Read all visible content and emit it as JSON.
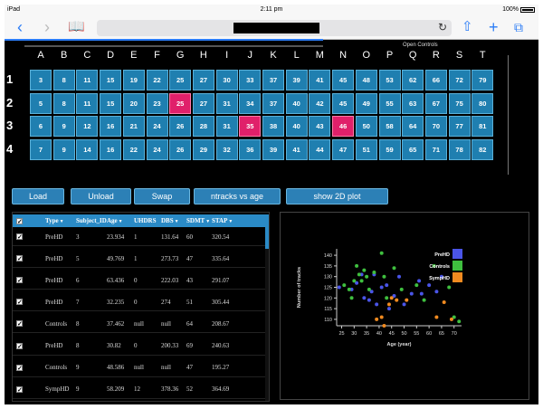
{
  "status": {
    "carrier": "iPad",
    "time": "2:11 pm",
    "battery": "100%"
  },
  "app": {
    "open_controls_label": "Open Controls",
    "columns": [
      "A",
      "B",
      "C",
      "D",
      "E",
      "F",
      "G",
      "H",
      "I",
      "J",
      "K",
      "L",
      "M",
      "N",
      "O",
      "P",
      "Q",
      "R",
      "S",
      "T"
    ],
    "rows": [
      {
        "label": "1",
        "cells": [
          "3",
          "8",
          "11",
          "15",
          "19",
          "22",
          "25",
          "27",
          "30",
          "33",
          "37",
          "39",
          "41",
          "45",
          "48",
          "53",
          "62",
          "66",
          "72",
          "79"
        ]
      },
      {
        "label": "2",
        "cells": [
          "5",
          "8",
          "11",
          "15",
          "20",
          "23",
          "25",
          "27",
          "31",
          "34",
          "37",
          "40",
          "42",
          "45",
          "49",
          "55",
          "63",
          "67",
          "75",
          "80"
        ]
      },
      {
        "label": "3",
        "cells": [
          "6",
          "9",
          "12",
          "16",
          "21",
          "24",
          "26",
          "28",
          "31",
          "35",
          "38",
          "40",
          "43",
          "46",
          "50",
          "58",
          "64",
          "70",
          "77",
          "81"
        ]
      },
      {
        "label": "4",
        "cells": [
          "7",
          "9",
          "14",
          "16",
          "22",
          "24",
          "26",
          "29",
          "32",
          "36",
          "39",
          "41",
          "44",
          "47",
          "51",
          "59",
          "65",
          "71",
          "78",
          "82"
        ]
      }
    ],
    "highlighted": [
      [
        1,
        6
      ],
      [
        2,
        9
      ],
      [
        2,
        13
      ]
    ],
    "buttons": {
      "load": "Load",
      "unload": "Unload",
      "swap": "Swap",
      "ntracks": "ntracks vs age",
      "show2d": "show 2D plot"
    },
    "table": {
      "headers": [
        "Type",
        "Subject_ID",
        "Age",
        "UHDRS",
        "DBS",
        "SDMT",
        "STAP"
      ],
      "rows": [
        [
          "PreHD",
          "3",
          "23.934",
          "1",
          "131.64",
          "60",
          "320.54"
        ],
        [
          "PreHD",
          "5",
          "49.769",
          "1",
          "273.73",
          "47",
          "335.64"
        ],
        [
          "PreHD",
          "6",
          "63.436",
          "0",
          "222.03",
          "43",
          "291.07"
        ],
        [
          "PreHD",
          "7",
          "32.235",
          "0",
          "274",
          "51",
          "305.44"
        ],
        [
          "Controls",
          "8",
          "37.462",
          "null",
          "null",
          "64",
          "208.67"
        ],
        [
          "PreHD",
          "8",
          "30.82",
          "0",
          "200.33",
          "69",
          "240.63"
        ],
        [
          "Controls",
          "9",
          "48.586",
          "null",
          "null",
          "47",
          "195.27"
        ],
        [
          "SympHD",
          "9",
          "58.209",
          "12",
          "378.36",
          "52",
          "364.69"
        ]
      ]
    }
  },
  "chart_data": {
    "type": "scatter",
    "xlabel": "Age (year)",
    "ylabel": "Number of tracks",
    "xlim": [
      23,
      73
    ],
    "ylim": [
      107,
      143
    ],
    "xticks": [
      25,
      30,
      35,
      40,
      45,
      50,
      55,
      60,
      65,
      70
    ],
    "yticks": [
      110,
      115,
      120,
      125,
      130,
      135,
      140
    ],
    "legend_position": "top-right",
    "series": [
      {
        "name": "PreHD",
        "color": "#4a55e8",
        "points": [
          [
            24,
            125
          ],
          [
            29,
            124
          ],
          [
            31,
            127
          ],
          [
            33,
            131
          ],
          [
            34,
            120
          ],
          [
            36,
            119
          ],
          [
            37,
            123
          ],
          [
            38,
            131
          ],
          [
            39,
            117
          ],
          [
            41,
            125
          ],
          [
            43,
            126
          ],
          [
            44,
            115
          ],
          [
            46,
            121
          ],
          [
            48,
            130
          ],
          [
            50,
            117
          ],
          [
            53,
            122
          ],
          [
            56,
            128
          ],
          [
            57,
            122
          ],
          [
            60,
            126
          ],
          [
            63,
            123
          ],
          [
            65,
            130
          ]
        ]
      },
      {
        "name": "Controls",
        "color": "#3fbf3f",
        "points": [
          [
            26,
            126
          ],
          [
            28,
            124
          ],
          [
            29,
            120
          ],
          [
            30,
            128
          ],
          [
            31,
            135
          ],
          [
            32,
            131
          ],
          [
            33,
            128
          ],
          [
            34,
            133
          ],
          [
            35,
            130
          ],
          [
            36,
            124
          ],
          [
            38,
            132
          ],
          [
            41,
            141
          ],
          [
            42,
            130
          ],
          [
            43,
            120
          ],
          [
            46,
            134
          ],
          [
            49,
            124
          ],
          [
            55,
            126
          ],
          [
            58,
            119
          ],
          [
            62,
            135
          ],
          [
            68,
            125
          ],
          [
            70,
            111
          ],
          [
            72,
            109
          ]
        ]
      },
      {
        "name": "SympHD",
        "color": "#f08a20",
        "points": [
          [
            39,
            110
          ],
          [
            41,
            111
          ],
          [
            42,
            107
          ],
          [
            44,
            117
          ],
          [
            45,
            120
          ],
          [
            47,
            119
          ],
          [
            51,
            119
          ],
          [
            63,
            111
          ],
          [
            66,
            118
          ],
          [
            69,
            110
          ]
        ]
      }
    ]
  }
}
